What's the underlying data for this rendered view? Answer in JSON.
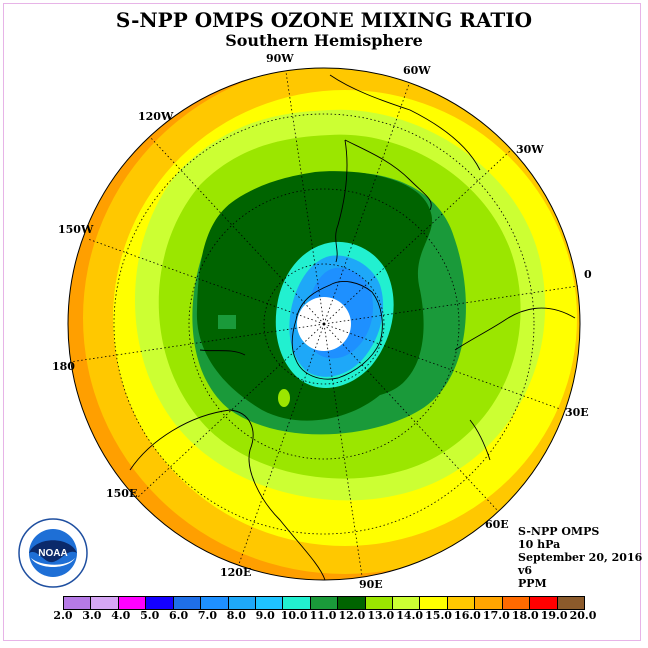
{
  "title": "S-NPP OMPS OZONE MIXING RATIO",
  "subtitle": "Southern Hemisphere",
  "longitude_labels": [
    "90W",
    "60W",
    "30W",
    "0",
    "30E",
    "60E",
    "90E",
    "120E",
    "150E",
    "180",
    "150W",
    "120W"
  ],
  "info": {
    "instrument": "S-NPP OMPS",
    "level": "10 hPa",
    "date": "September 20, 2016",
    "version": "v6",
    "units": "PPM"
  },
  "colorbar": {
    "ticks": [
      "2.0",
      "3.0",
      "4.0",
      "5.0",
      "6.0",
      "7.0",
      "8.0",
      "9.0",
      "10.0",
      "11.0",
      "12.0",
      "13.0",
      "14.0",
      "15.0",
      "16.0",
      "17.0",
      "18.0",
      "19.0",
      "20.0"
    ],
    "colors": [
      "#b67ae6",
      "#d6a6f4",
      "#ff00ff",
      "#1400ff",
      "#1f6fe8",
      "#1e90ff",
      "#1ea8f8",
      "#1fc4ff",
      "#22f0d0",
      "#1a9a3a",
      "#006400",
      "#9be600",
      "#ccff33",
      "#ffff00",
      "#ffc800",
      "#ffa500",
      "#ff6a00",
      "#ff0000",
      "#8b5a2b"
    ]
  },
  "logo_text": "NOAA"
}
